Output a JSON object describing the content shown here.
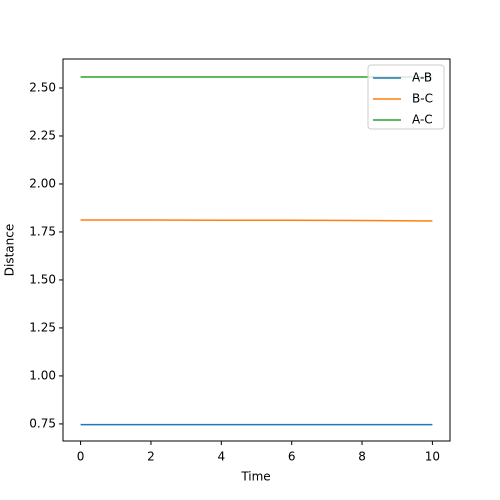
{
  "chart_data": {
    "type": "line",
    "xlabel": "Time",
    "ylabel": "Distance",
    "x": [
      0,
      2,
      4,
      6,
      8,
      10
    ],
    "series": [
      {
        "name": "A-B",
        "color": "#1f77b4",
        "values": [
          0.746,
          0.746,
          0.746,
          0.746,
          0.746,
          0.746
        ]
      },
      {
        "name": "B-C",
        "color": "#ff7f0e",
        "values": [
          1.812,
          1.812,
          1.811,
          1.811,
          1.81,
          1.807
        ]
      },
      {
        "name": "A-C",
        "color": "#2ca02c",
        "values": [
          2.557,
          2.557,
          2.557,
          2.557,
          2.557,
          2.557
        ]
      }
    ],
    "xlim": [
      -0.5,
      10.5
    ],
    "ylim": [
      0.661,
      2.651
    ],
    "xticks": [
      0,
      2,
      4,
      6,
      8,
      10
    ],
    "yticks": [
      0.75,
      {
        "value": 1.0,
        "label": "1.00"
      },
      1.25,
      {
        "value": 1.5,
        "label": "1.50"
      },
      1.75,
      {
        "value": 2.0,
        "label": "2.00"
      },
      2.25,
      {
        "value": 2.5,
        "label": "2.50"
      }
    ],
    "grid": false,
    "legend": "upper right"
  }
}
